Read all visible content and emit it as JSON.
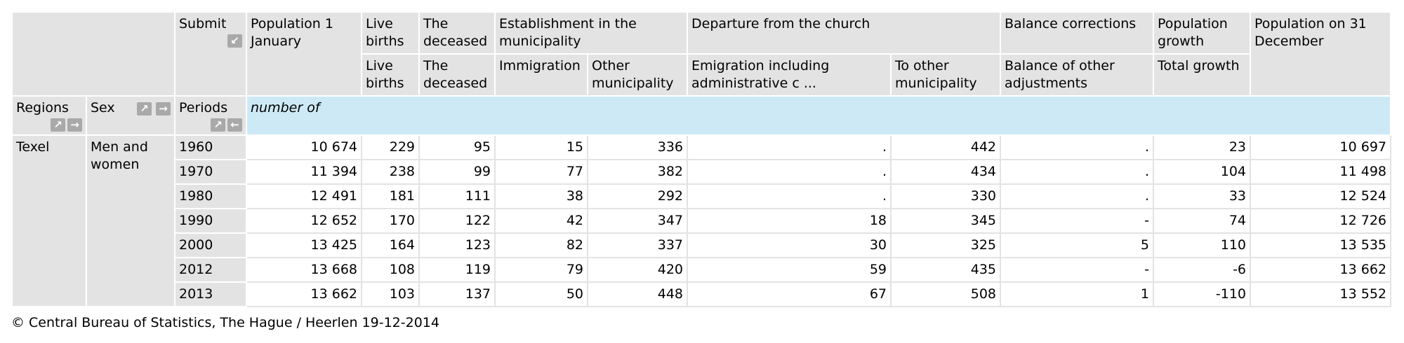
{
  "header": {
    "submit": "Submit",
    "row1": [
      {
        "label": "Population 1 January"
      },
      {
        "label": "Live births"
      },
      {
        "label": "The deceased"
      },
      {
        "label": "Establishment in the municipality"
      },
      {
        "label": "Departure from the church"
      },
      {
        "label": "Balance corrections"
      },
      {
        "label": "Population growth"
      },
      {
        "label": "Population on 31 December"
      }
    ],
    "row2": [
      "Live births",
      "The deceased",
      "Immigration",
      "Other municipality",
      "Emigration including administrative c ...",
      "To other municipality",
      "Balance of other adjustments",
      "Total growth"
    ],
    "regions": "Regions",
    "sex": "Sex",
    "periods": "Periods",
    "unit": "number of"
  },
  "dims": {
    "region": "Texel",
    "sex": "Men and women"
  },
  "rows": [
    {
      "period": "1960",
      "v": [
        "10 674",
        "229",
        "95",
        "15",
        "336",
        ".",
        "442",
        ".",
        "23",
        "10 697"
      ]
    },
    {
      "period": "1970",
      "v": [
        "11 394",
        "238",
        "99",
        "77",
        "382",
        ".",
        "434",
        ".",
        "104",
        "11 498"
      ]
    },
    {
      "period": "1980",
      "v": [
        "12 491",
        "181",
        "111",
        "38",
        "292",
        ".",
        "330",
        ".",
        "33",
        "12 524"
      ]
    },
    {
      "period": "1990",
      "v": [
        "12 652",
        "170",
        "122",
        "42",
        "347",
        "18",
        "345",
        "-",
        "74",
        "12 726"
      ]
    },
    {
      "period": "2000",
      "v": [
        "13 425",
        "164",
        "123",
        "82",
        "337",
        "30",
        "325",
        "5",
        "110",
        "13 535"
      ]
    },
    {
      "period": "2012",
      "v": [
        "13 668",
        "108",
        "119",
        "79",
        "420",
        "59",
        "435",
        "-",
        "-6",
        "13 662"
      ]
    },
    {
      "period": "2013",
      "v": [
        "13 662",
        "103",
        "137",
        "50",
        "448",
        "67",
        "508",
        "1",
        "-110",
        "13 552"
      ]
    }
  ],
  "footer": "© Central Bureau of Statistics, The Hague / Heerlen 19-12-2014",
  "icons": {
    "collapse": "↙",
    "expand": "↗",
    "next": "→",
    "prev": "←"
  }
}
